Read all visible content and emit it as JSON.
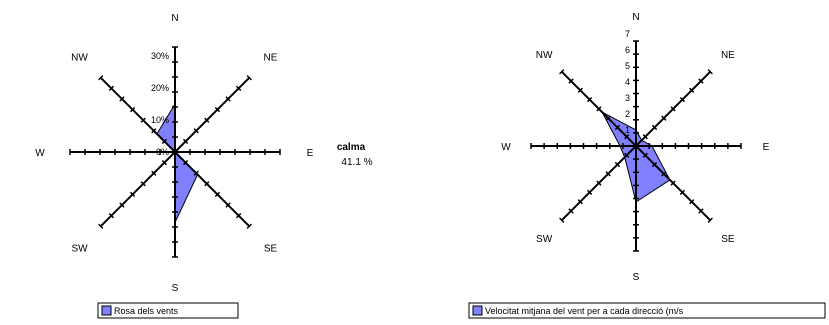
{
  "colors": {
    "fill": "#8080ff",
    "axis": "#000000",
    "background": "#ffffff"
  },
  "calm": {
    "label": "calma",
    "value": "41.1 %"
  },
  "chart_data": [
    {
      "type": "radar",
      "directions": [
        "N",
        "NE",
        "E",
        "SE",
        "S",
        "SW",
        "W",
        "NW"
      ],
      "axis_labels": [
        "N",
        "NE",
        "E",
        "SE",
        "S",
        "SW",
        "W",
        "NW"
      ],
      "radial_unit": "%",
      "ticks": [
        "0%",
        "10%",
        "20%",
        "30%"
      ],
      "rlim": [
        0,
        40
      ],
      "series": [
        {
          "name": "Rosa dels vents",
          "values": [
            15,
            0,
            0,
            10,
            22,
            0,
            0,
            8
          ]
        }
      ],
      "legend_position": "bottom"
    },
    {
      "type": "radar",
      "directions": [
        "N",
        "NE",
        "E",
        "SE",
        "S",
        "SW",
        "W",
        "NW"
      ],
      "axis_labels": [
        "N",
        "NE",
        "E",
        "SE",
        "S",
        "SW",
        "W",
        "NW"
      ],
      "ticks": [
        "1",
        "2",
        "3",
        "4",
        "5",
        "6",
        "7"
      ],
      "rlim": [
        0,
        8
      ],
      "series": [
        {
          "name": "Velocitat mitjana del vent per a cada direcció (m/s",
          "values": [
            1,
            0.5,
            1,
            3,
            3.5,
            1,
            1,
            3
          ]
        }
      ],
      "legend_position": "bottom"
    }
  ]
}
